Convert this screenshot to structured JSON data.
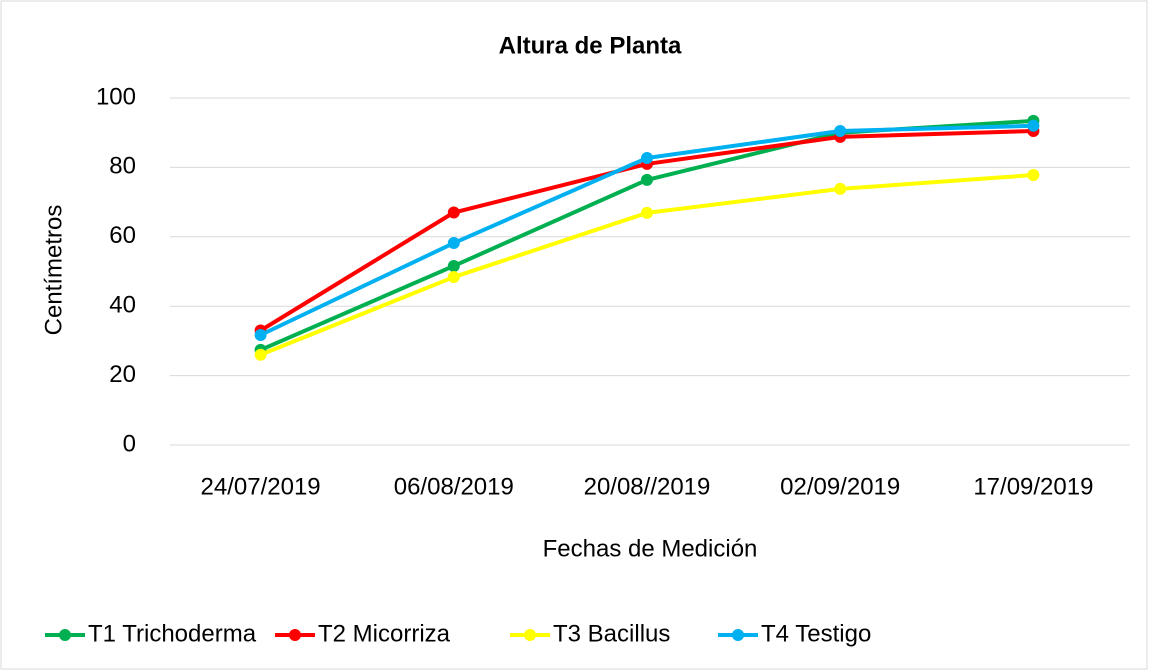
{
  "chart_data": {
    "type": "line",
    "title": "Altura de Planta",
    "x_label": "Fechas de Medición",
    "y_label": "Centímetros",
    "categories": [
      "24/07/2019",
      "06/08/2019",
      "20/08//2019",
      "02/09/2019",
      "17/09/2019"
    ],
    "series": [
      {
        "name": "T1 Trichoderma",
        "color": "#00b050",
        "values": [
          27.4,
          51.6,
          76.4,
          90,
          93.4
        ]
      },
      {
        "name": "T2 Micorriza",
        "color": "#ff0000",
        "values": [
          33,
          67,
          81,
          88.8,
          90.5
        ]
      },
      {
        "name": "T3 Bacillus",
        "color": "#ffff00",
        "values": [
          26,
          48.4,
          66.9,
          73.8,
          77.8
        ]
      },
      {
        "name": "T4 Testigo",
        "color": "#00b0f0",
        "values": [
          31.7,
          58.2,
          82.7,
          90.5,
          92
        ]
      }
    ],
    "ylim": [
      0,
      100
    ],
    "yticks": [
      0,
      20,
      40,
      60,
      80,
      100
    ],
    "grid": true,
    "legend": "bottom"
  }
}
